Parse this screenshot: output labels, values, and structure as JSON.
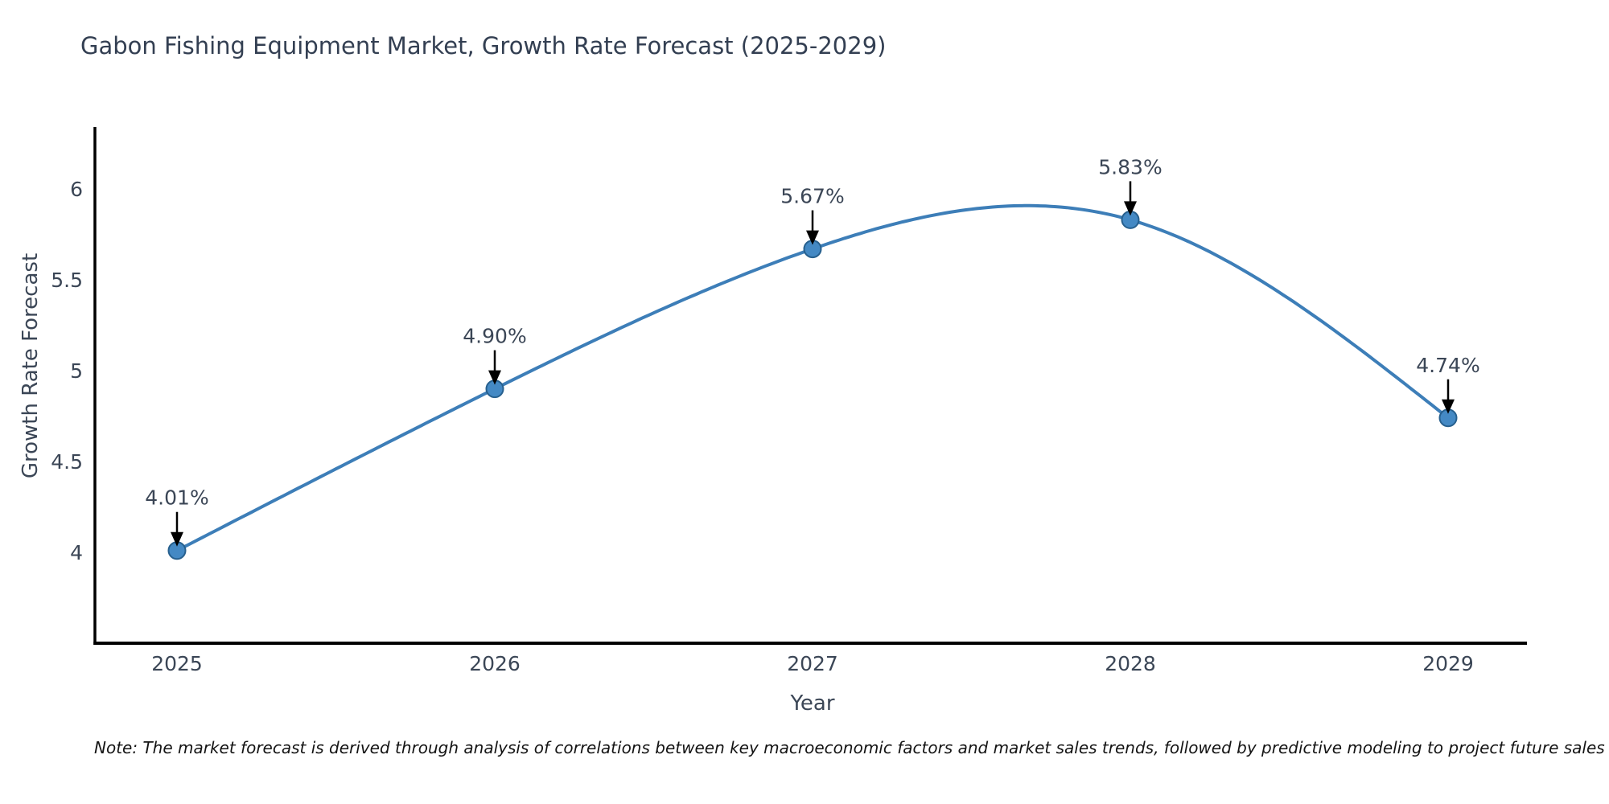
{
  "title": "Gabon Fishing Equipment Market, Growth Rate Forecast (2025-2029)",
  "note": "Note: The market forecast is derived through analysis of correlations between key macroeconomic factors and market sales trends, followed by predictive modeling to project future sales",
  "chart_data": {
    "type": "line",
    "title": "Gabon Fishing Equipment Market, Growth Rate Forecast (2025-2029)",
    "xlabel": "Year",
    "ylabel": "Growth Rate Forecast",
    "x": [
      2025,
      2026,
      2027,
      2028,
      2029
    ],
    "values": [
      4.01,
      4.9,
      5.67,
      5.83,
      4.74
    ],
    "point_labels": [
      "4.01%",
      "4.90%",
      "5.67%",
      "5.83%",
      "4.74%"
    ],
    "yticks": [
      4,
      4.5,
      5,
      5.5,
      6
    ],
    "ytick_labels": [
      "4",
      "4.5",
      "5",
      "5.5",
      "6"
    ],
    "xtick_labels": [
      "2025",
      "2026",
      "2027",
      "2028",
      "2029"
    ],
    "ylim": [
      3.5,
      6.34
    ],
    "grid": false,
    "legend": "none",
    "smoothing": "natural-cubic-spline",
    "line_color": "#3d7eb8",
    "marker_fill_color": "#4489c4",
    "marker_edge_color": "#27608e",
    "arrow_color": "#000000",
    "axis_color": "#000000",
    "tick_label_color": "#3b4656",
    "annotation_color": "#3b4656"
  }
}
